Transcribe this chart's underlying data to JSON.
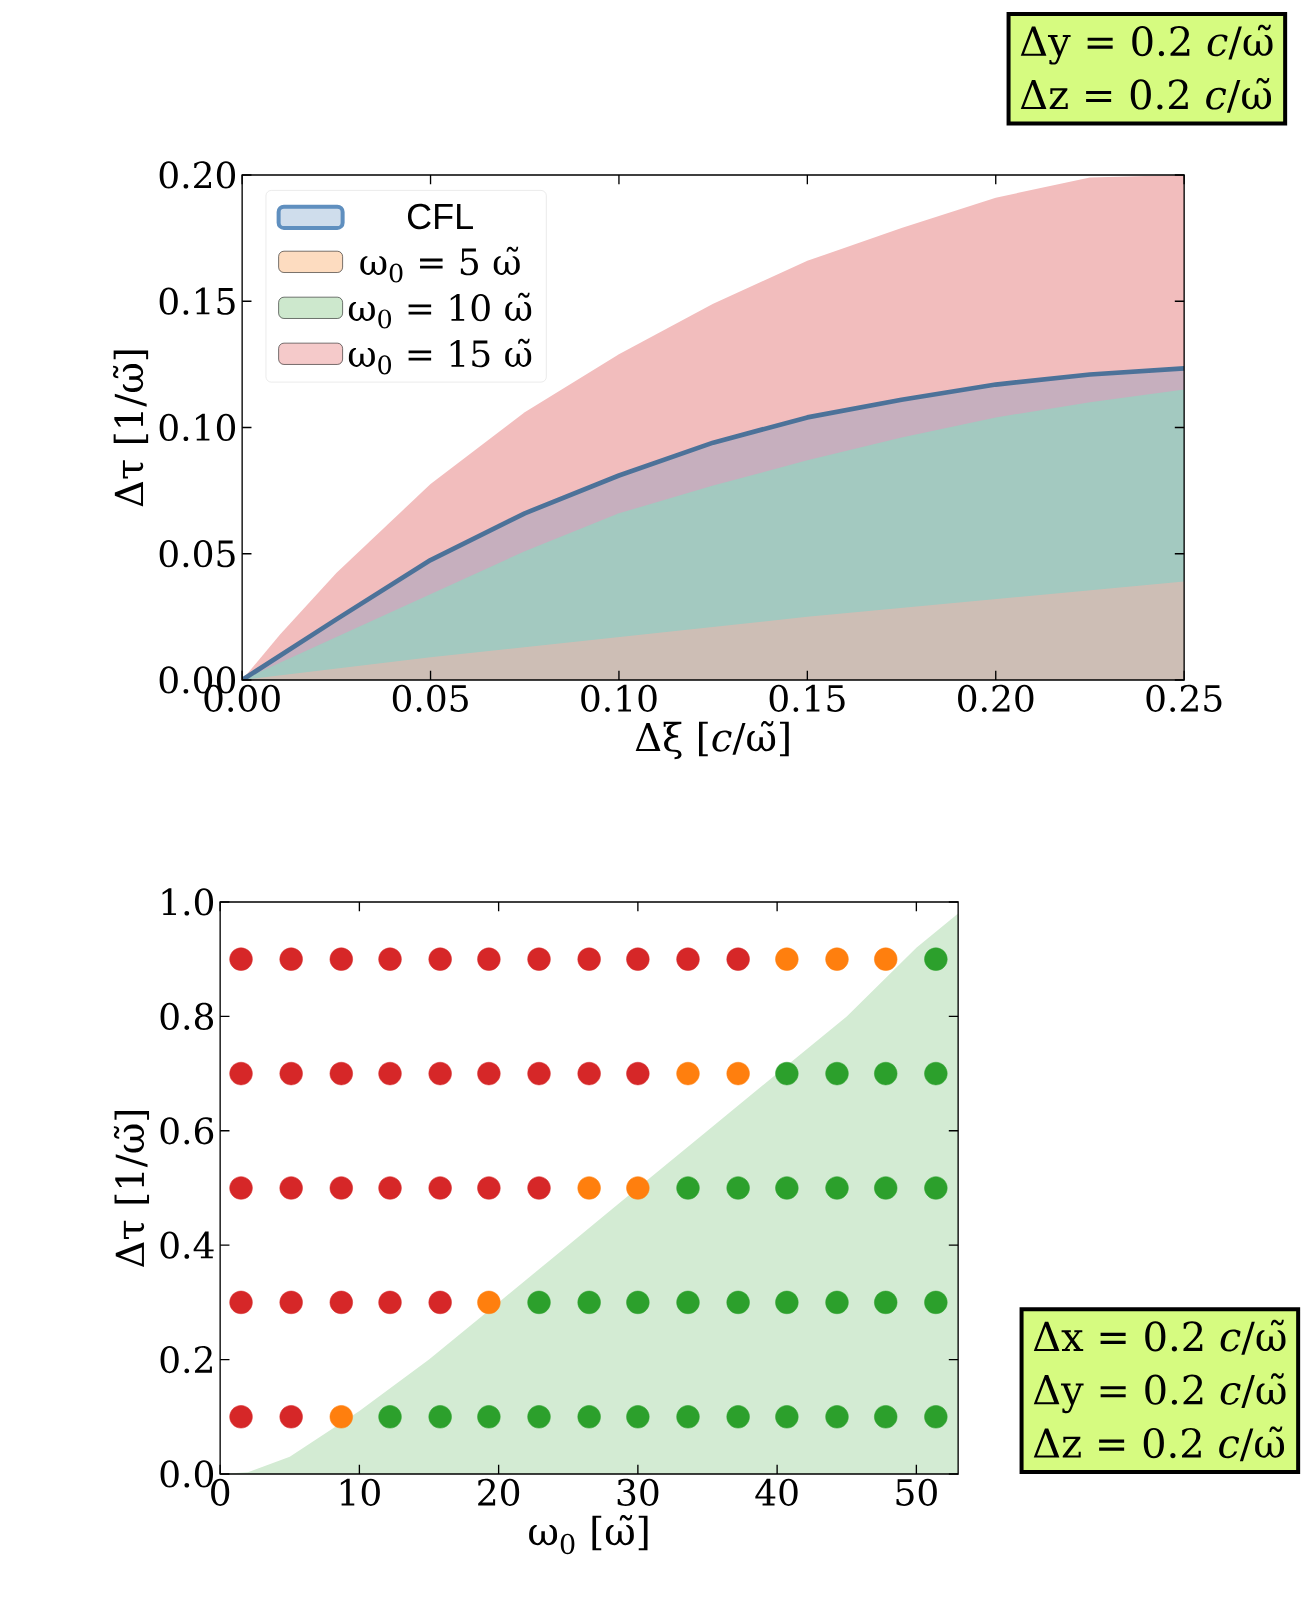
{
  "chart_data": [
    {
      "type": "area",
      "xlabel": "Δξ [*c*/ω̃]",
      "ylabel": "Δτ [1/ω̃]",
      "legend": "top left",
      "xlim": [
        0,
        0.25
      ],
      "ylim": [
        0,
        0.2
      ],
      "xticks": [
        {
          "value": 0,
          "label": "0.00"
        },
        {
          "value": 0.05,
          "label": "0.05"
        },
        {
          "value": 0.1,
          "label": "0.10"
        },
        {
          "value": 0.15,
          "label": "0.15"
        },
        {
          "value": 0.2,
          "label": "0.20"
        },
        {
          "value": 0.25,
          "label": "0.25"
        }
      ],
      "yticks": [
        {
          "value": 0,
          "label": "0.00"
        },
        {
          "value": 0.05,
          "label": "0.05"
        },
        {
          "value": 0.1,
          "label": "0.10"
        },
        {
          "value": 0.15,
          "label": "0.15"
        },
        {
          "value": 0.2,
          "label": "0.20"
        }
      ],
      "annotations": [
        "Δy = 0.2 *c*/ω̃",
        "Δz = 0.2 *c*/ω̃"
      ],
      "series": [
        {
          "name": "CFL",
          "color": "#5f8fbf",
          "line_style": "solid",
          "x": [
            0,
            0.025,
            0.05,
            0.075,
            0.1,
            0.125,
            0.15,
            0.175,
            0.2,
            0.225,
            0.25
          ],
          "values": [
            0,
            0.024,
            0.0475,
            0.066,
            0.081,
            0.094,
            0.104,
            0.111,
            0.117,
            0.121,
            0.1234
          ]
        },
        {
          "name": "ω$_{0}$ = 5 ω̃",
          "color": "#fdd3b0",
          "x": [
            0,
            0.05,
            0.1,
            0.15,
            0.2,
            0.25
          ],
          "values": [
            0,
            0.009,
            0.017,
            0.025,
            0.032,
            0.039
          ]
        },
        {
          "name": "ω$_{0}$ = 10 ω̃",
          "color": "#c0e2c0",
          "x": [
            0,
            0.025,
            0.05,
            0.075,
            0.1,
            0.125,
            0.15,
            0.175,
            0.2,
            0.225,
            0.25
          ],
          "values": [
            0,
            0.017,
            0.034,
            0.051,
            0.066,
            0.077,
            0.087,
            0.096,
            0.104,
            0.11,
            0.115
          ]
        },
        {
          "name": "ω$_{0}$ = 15 ω̃",
          "color": "#f2bdbd",
          "x": [
            0,
            0.01,
            0.025,
            0.05,
            0.075,
            0.1,
            0.125,
            0.15,
            0.175,
            0.2,
            0.225,
            0.25
          ],
          "values": [
            0,
            0.0179,
            0.0424,
            0.0776,
            0.106,
            0.129,
            0.149,
            0.166,
            0.179,
            0.191,
            0.199,
            0.2
          ]
        }
      ]
    },
    {
      "type": "scatter",
      "marker": "circle",
      "xlabel": "ω$_{0}$ [ω̃]",
      "ylabel": "Δτ [1/ω̃]",
      "xlim": [
        0,
        53
      ],
      "ylim": [
        0,
        1
      ],
      "xticks": [
        0,
        10,
        20,
        30,
        40,
        50
      ],
      "yticks": [
        {
          "value": 0,
          "label": "0.0"
        },
        0.2,
        0.4,
        0.6,
        0.8,
        {
          "value": 1,
          "label": "1.0"
        }
      ],
      "annotations": [
        "Δx = 0.2 *c*/ω̃",
        "Δy = 0.2 *c*/ω̃",
        "Δz = 0.2 *c*/ω̃"
      ],
      "series": [
        {
          "type": "area",
          "marker": "none",
          "color": "#d3ebd3",
          "x": [
            0,
            2,
            5,
            10,
            15,
            20,
            25,
            28,
            32,
            35,
            40,
            45,
            50,
            53
          ],
          "values": [
            0,
            0.003,
            0.03,
            0.11,
            0.2,
            0.3,
            0.4,
            0.46,
            0.54,
            0.6,
            0.7,
            0.8,
            0.92,
            0.98
          ]
        },
        {
          "color": "#d62728",
          "x": [
            1.5,
            5.1,
            8.7,
            12.2,
            15.8,
            19.3,
            22.9,
            26.5,
            30.0,
            33.6,
            37.2,
            1.5,
            5.1,
            8.7,
            12.2,
            15.8,
            19.3,
            22.9,
            26.5,
            30.0,
            1.5,
            5.1,
            8.7,
            12.2,
            15.8,
            19.3,
            22.9,
            1.5,
            5.1,
            8.7,
            12.2,
            15.8,
            1.5,
            5.1
          ],
          "values": [
            0.9,
            0.9,
            0.9,
            0.9,
            0.9,
            0.9,
            0.9,
            0.9,
            0.9,
            0.9,
            0.9,
            0.7,
            0.7,
            0.7,
            0.7,
            0.7,
            0.7,
            0.7,
            0.7,
            0.7,
            0.5,
            0.5,
            0.5,
            0.5,
            0.5,
            0.5,
            0.5,
            0.3,
            0.3,
            0.3,
            0.3,
            0.3,
            0.1,
            0.1
          ]
        },
        {
          "color": "#ff7f0e",
          "x": [
            40.7,
            44.3,
            47.8,
            33.6,
            37.2,
            26.5,
            30.0,
            19.3,
            8.7
          ],
          "values": [
            0.9,
            0.9,
            0.9,
            0.7,
            0.7,
            0.5,
            0.5,
            0.3,
            0.1
          ]
        },
        {
          "color": "#2ca02c",
          "x": [
            51.4,
            40.7,
            44.3,
            47.8,
            51.4,
            33.6,
            37.2,
            40.7,
            44.3,
            47.8,
            51.4,
            22.9,
            26.5,
            30.0,
            33.6,
            37.2,
            40.7,
            44.3,
            47.8,
            51.4,
            12.2,
            15.8,
            19.3,
            22.9,
            26.5,
            30.0,
            33.6,
            37.2,
            40.7,
            44.3,
            47.8,
            51.4
          ],
          "values": [
            0.9,
            0.7,
            0.7,
            0.7,
            0.7,
            0.5,
            0.5,
            0.5,
            0.5,
            0.5,
            0.5,
            0.3,
            0.3,
            0.3,
            0.3,
            0.3,
            0.3,
            0.3,
            0.3,
            0.3,
            0.1,
            0.1,
            0.1,
            0.1,
            0.1,
            0.1,
            0.1,
            0.1,
            0.1,
            0.1,
            0.1,
            0.1
          ]
        }
      ]
    }
  ]
}
